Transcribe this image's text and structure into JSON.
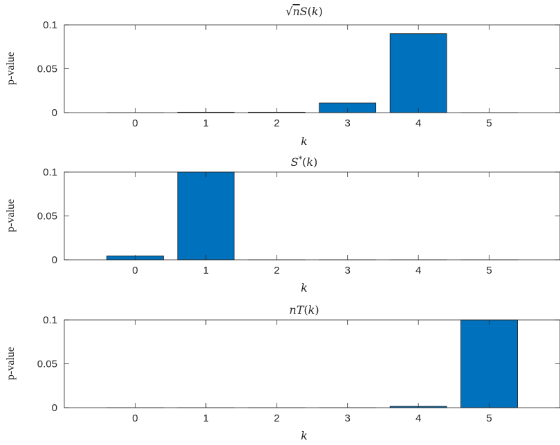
{
  "chart_data": [
    {
      "type": "bar",
      "title": "√nS(k)",
      "title_parts": [
        "√",
        "n",
        "S",
        "(",
        "k",
        ")"
      ],
      "xlabel": "k",
      "ylabel": "p-value",
      "categories": [
        "0",
        "1",
        "2",
        "3",
        "4",
        "5"
      ],
      "values": [
        0.0,
        0.0005,
        0.0005,
        0.011,
        0.09,
        0.0
      ],
      "ylim": [
        0,
        0.1
      ],
      "xlim": [
        -1,
        6
      ],
      "yticks": [
        0,
        0.05,
        0.1
      ],
      "ytick_labels": [
        "0",
        "0.05",
        "0.1"
      ],
      "bar_color": "#0072BD",
      "grid": false
    },
    {
      "type": "bar",
      "title": "S*(k)",
      "title_parts": [
        "S",
        "*",
        "(",
        "k",
        ")"
      ],
      "xlabel": "k",
      "ylabel": "p-value",
      "categories": [
        "0",
        "1",
        "2",
        "3",
        "4",
        "5"
      ],
      "values": [
        0.0045,
        0.1,
        0.0,
        0.0,
        0.0,
        0.0
      ],
      "ylim": [
        0,
        0.1
      ],
      "xlim": [
        -1,
        6
      ],
      "yticks": [
        0,
        0.05,
        0.1
      ],
      "ytick_labels": [
        "0",
        "0.05",
        "0.1"
      ],
      "bar_color": "#0072BD",
      "grid": false
    },
    {
      "type": "bar",
      "title": "nT(k)",
      "title_parts": [
        "n",
        "T",
        "(",
        "k",
        ")"
      ],
      "xlabel": "k",
      "ylabel": "p-value",
      "categories": [
        "0",
        "1",
        "2",
        "3",
        "4",
        "5"
      ],
      "values": [
        0.0,
        0.0,
        0.0,
        0.0,
        0.0015,
        0.1
      ],
      "ylim": [
        0,
        0.1
      ],
      "xlim": [
        -1,
        6
      ],
      "yticks": [
        0,
        0.05,
        0.1
      ],
      "ytick_labels": [
        "0",
        "0.05",
        "0.1"
      ],
      "bar_color": "#0072BD",
      "grid": false
    }
  ]
}
